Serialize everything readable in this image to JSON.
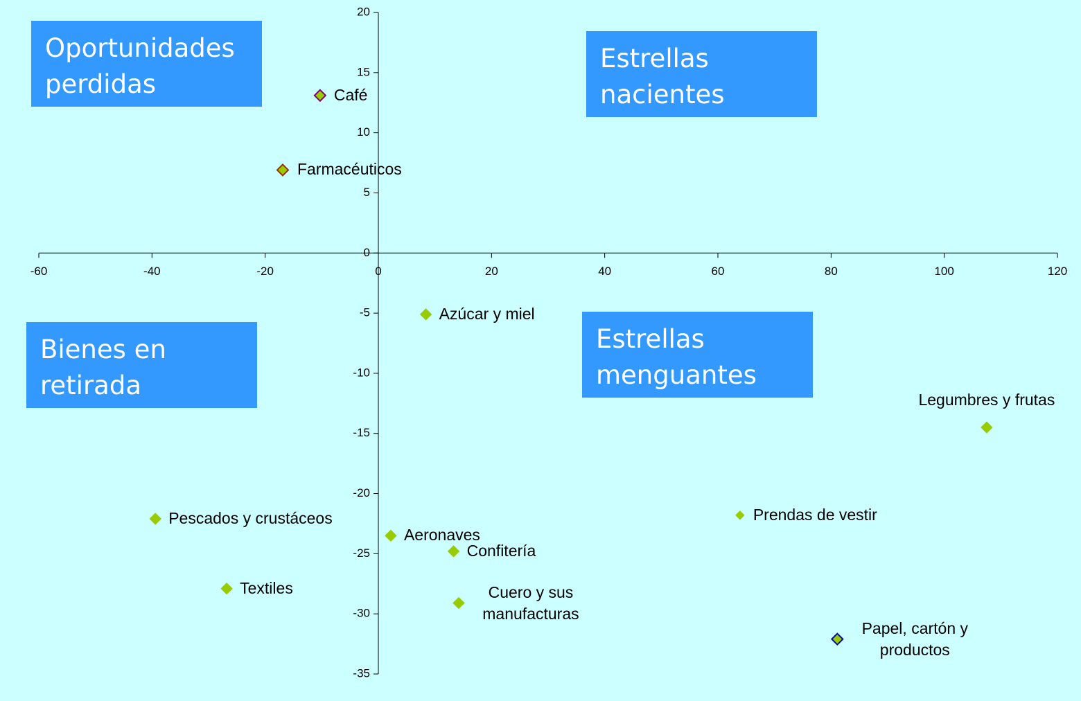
{
  "chart_data": {
    "type": "scatter",
    "background": "#ccffff",
    "color": "#99cc00",
    "xlim": [
      -60,
      120
    ],
    "xticks": [
      -60,
      -40,
      -20,
      0,
      20,
      40,
      60,
      80,
      100,
      120
    ],
    "ylim": [
      -35,
      20
    ],
    "yticks": [
      -35,
      -30,
      -25,
      -20,
      -15,
      -10,
      -5,
      0,
      5,
      10,
      15,
      20
    ],
    "labels": [
      "Café",
      "Farmacéuticos",
      "Azúcar y miel",
      "Legumbres y frutas",
      "Pescados y crustáceos",
      "Prendas de vestir",
      "Aeronaves",
      "Confitería",
      "Textiles",
      "Cuero y sus manufacturas",
      "Papel, cartón y productos"
    ],
    "x": [
      -10.3,
      -16.9,
      8.4,
      107.5,
      -39.4,
      63.9,
      2.2,
      13.3,
      -26.8,
      14.2,
      81.1
    ],
    "values": [
      13.1,
      6.9,
      -5.1,
      -14.5,
      -22.1,
      -21.8,
      -23.5,
      -24.8,
      -27.9,
      -29.1,
      -32.1
    ],
    "edge_colors": [
      "#800080",
      "#993300",
      null,
      null,
      null,
      null,
      null,
      null,
      null,
      null,
      "#0000cc"
    ],
    "annotations": [
      {
        "text": "Oportunidades perdidas",
        "color": "#3399ff"
      },
      {
        "text": "Estrellas nacientes",
        "color": "#3399ff"
      },
      {
        "text": "Bienes en retirada",
        "color": "#3399ff"
      },
      {
        "text": "Estrellas menguantes",
        "color": "#3399ff"
      }
    ]
  }
}
